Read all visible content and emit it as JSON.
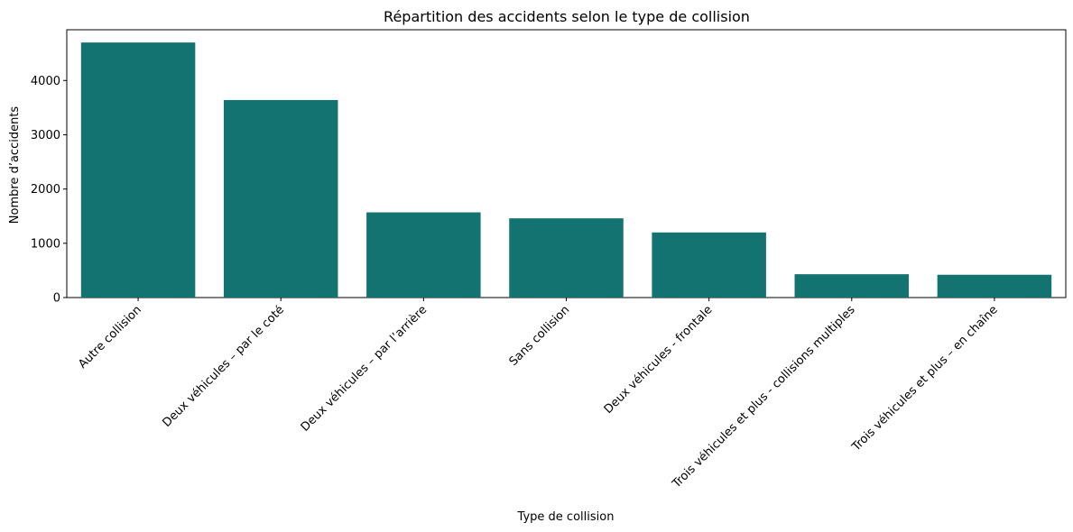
{
  "chart_data": {
    "type": "bar",
    "title": "Répartition des accidents selon le type de collision",
    "xlabel": "Type de collision",
    "ylabel": "Nombre d’accidents",
    "categories": [
      "Autre collision",
      "Deux véhicules – par le coté",
      "Deux véhicules – par l’arrière",
      "Sans collision",
      "Deux véhicules - frontale",
      "Trois véhicules et plus - collisions multiples",
      "Trois véhicules et plus – en chaîne"
    ],
    "values": [
      4700,
      3640,
      1570,
      1460,
      1200,
      430,
      420
    ],
    "ylim": [
      0,
      4935
    ],
    "yticks": [
      0,
      1000,
      2000,
      3000,
      4000
    ],
    "ytick_labels": [
      "0",
      "1000",
      "2000",
      "3000",
      "4000"
    ],
    "bar_color": "#137370",
    "grid": false,
    "legend": "none"
  }
}
